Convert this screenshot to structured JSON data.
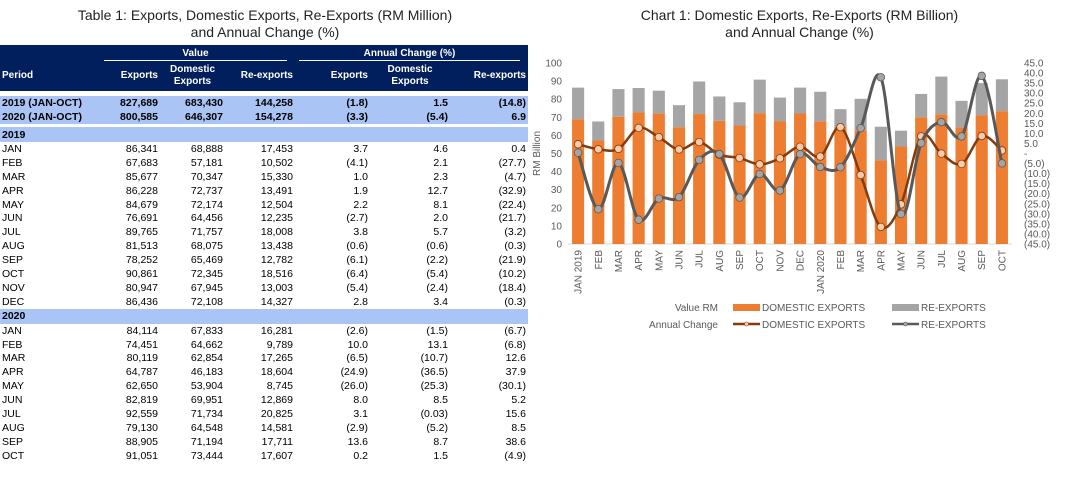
{
  "table": {
    "title_line1": "Table 1: Exports, Domestic Exports, Re-Exports (RM Million)",
    "title_line2": "and Annual Change (%)",
    "group_headers": {
      "value": "Value",
      "annual_change": "Annual Change (%)"
    },
    "columns": {
      "period": "Period",
      "exports": "Exports",
      "domestic_exports_1": "Domestic",
      "domestic_exports_2": "Exports",
      "re_exports": "Re-exports",
      "chg_exports": "Exports",
      "chg_domestic_1": "Domestic",
      "chg_domestic_2": "Exports",
      "chg_re_exports": "Re-exports"
    },
    "summary": [
      {
        "period": "2019 (JAN-OCT)",
        "exports": "827,689",
        "domestic": "683,430",
        "re": "144,258",
        "chg_exports": "(1.8)",
        "chg_domestic": "1.5",
        "chg_re": "(14.8)"
      },
      {
        "period": "2020 (JAN-OCT)",
        "exports": "800,585",
        "domestic": "646,307",
        "re": "154,278",
        "chg_exports": "(3.3)",
        "chg_domestic": "(5.4)",
        "chg_re": "6.9"
      }
    ],
    "years": [
      {
        "label": "2019",
        "rows": [
          {
            "period": "JAN",
            "exports": "86,341",
            "domestic": "68,888",
            "re": "17,453",
            "chg_exports": "3.7",
            "chg_domestic": "4.6",
            "chg_re": "0.4"
          },
          {
            "period": "FEB",
            "exports": "67,683",
            "domestic": "57,181",
            "re": "10,502",
            "chg_exports": "(4.1)",
            "chg_domestic": "2.1",
            "chg_re": "(27.7)"
          },
          {
            "period": "MAR",
            "exports": "85,677",
            "domestic": "70,347",
            "re": "15,330",
            "chg_exports": "1.0",
            "chg_domestic": "2.3",
            "chg_re": "(4.7)"
          },
          {
            "period": "APR",
            "exports": "86,228",
            "domestic": "72,737",
            "re": "13,491",
            "chg_exports": "1.9",
            "chg_domestic": "12.7",
            "chg_re": "(32.9)"
          },
          {
            "period": "MAY",
            "exports": "84,679",
            "domestic": "72,174",
            "re": "12,504",
            "chg_exports": "2.2",
            "chg_domestic": "8.1",
            "chg_re": "(22.4)"
          },
          {
            "period": "JUN",
            "exports": "76,691",
            "domestic": "64,456",
            "re": "12,235",
            "chg_exports": "(2.7)",
            "chg_domestic": "2.0",
            "chg_re": "(21.7)"
          },
          {
            "period": "JUL",
            "exports": "89,765",
            "domestic": "71,757",
            "re": "18,008",
            "chg_exports": "3.8",
            "chg_domestic": "5.7",
            "chg_re": "(3.2)"
          },
          {
            "period": "AUG",
            "exports": "81,513",
            "domestic": "68,075",
            "re": "13,438",
            "chg_exports": "(0.6)",
            "chg_domestic": "(0.6)",
            "chg_re": "(0.3)"
          },
          {
            "period": "SEP",
            "exports": "78,252",
            "domestic": "65,469",
            "re": "12,782",
            "chg_exports": "(6.1)",
            "chg_domestic": "(2.2)",
            "chg_re": "(21.9)"
          },
          {
            "period": "OCT",
            "exports": "90,861",
            "domestic": "72,345",
            "re": "18,516",
            "chg_exports": "(6.4)",
            "chg_domestic": "(5.4)",
            "chg_re": "(10.2)"
          },
          {
            "period": "NOV",
            "exports": "80,947",
            "domestic": "67,945",
            "re": "13,003",
            "chg_exports": "(5.4)",
            "chg_domestic": "(2.4)",
            "chg_re": "(18.4)"
          },
          {
            "period": "DEC",
            "exports": "86,436",
            "domestic": "72,108",
            "re": "14,327",
            "chg_exports": "2.8",
            "chg_domestic": "3.4",
            "chg_re": "(0.3)"
          }
        ]
      },
      {
        "label": "2020",
        "rows": [
          {
            "period": "JAN",
            "exports": "84,114",
            "domestic": "67,833",
            "re": "16,281",
            "chg_exports": "(2.6)",
            "chg_domestic": "(1.5)",
            "chg_re": "(6.7)"
          },
          {
            "period": "FEB",
            "exports": "74,451",
            "domestic": "64,662",
            "re": "9,789",
            "chg_exports": "10.0",
            "chg_domestic": "13.1",
            "chg_re": "(6.8)"
          },
          {
            "period": "MAR",
            "exports": "80,119",
            "domestic": "62,854",
            "re": "17,265",
            "chg_exports": "(6.5)",
            "chg_domestic": "(10.7)",
            "chg_re": "12.6"
          },
          {
            "period": "APR",
            "exports": "64,787",
            "domestic": "46,183",
            "re": "18,604",
            "chg_exports": "(24.9)",
            "chg_domestic": "(36.5)",
            "chg_re": "37.9"
          },
          {
            "period": "MAY",
            "exports": "62,650",
            "domestic": "53,904",
            "re": "8,745",
            "chg_exports": "(26.0)",
            "chg_domestic": "(25.3)",
            "chg_re": "(30.1)"
          },
          {
            "period": "JUN",
            "exports": "82,819",
            "domestic": "69,951",
            "re": "12,869",
            "chg_exports": "8.0",
            "chg_domestic": "8.5",
            "chg_re": "5.2"
          },
          {
            "period": "JUL",
            "exports": "92,559",
            "domestic": "71,734",
            "re": "20,825",
            "chg_exports": "3.1",
            "chg_domestic": "(0.03)",
            "chg_re": "15.6"
          },
          {
            "period": "AUG",
            "exports": "79,130",
            "domestic": "64,548",
            "re": "14,581",
            "chg_exports": "(2.9)",
            "chg_domestic": "(5.2)",
            "chg_re": "8.5"
          },
          {
            "period": "SEP",
            "exports": "88,905",
            "domestic": "71,194",
            "re": "17,711",
            "chg_exports": "13.6",
            "chg_domestic": "8.7",
            "chg_re": "38.6"
          },
          {
            "period": "OCT",
            "exports": "91,051",
            "domestic": "73,444",
            "re": "17,607",
            "chg_exports": "0.2",
            "chg_domestic": "1.5",
            "chg_re": "(4.9)"
          }
        ]
      }
    ],
    "colors": {
      "header_bg": "#001f5c",
      "band_bg": "#aac4f5"
    }
  },
  "chart_data": {
    "type": "bar",
    "title": "Chart 1: Domestic Exports, Re-Exports (RM Billion)",
    "subtitle": "and Annual Change (%)",
    "ylabel": "RM Billion",
    "ylim": [
      0,
      100
    ],
    "yticks": [
      0,
      10,
      20,
      30,
      40,
      50,
      60,
      70,
      80,
      90,
      100
    ],
    "y2lim": [
      -45,
      45
    ],
    "y2ticks": [
      "45.0",
      "40.0",
      "35.0",
      "30.0",
      "25.0",
      "20.0",
      "15.0",
      "10.0",
      "5.0",
      "-",
      "(5.0)",
      "(10.0)",
      "(15.0)",
      "(20.0)",
      "(25.0)",
      "(30.0)",
      "(35.0)",
      "(40.0)",
      "(45.0)"
    ],
    "categories": [
      "JAN 2019",
      "FEB",
      "MAR",
      "APR",
      "MAY",
      "JUN",
      "JUL",
      "AUG",
      "SEP",
      "OCT",
      "NOV",
      "DEC",
      "JAN 2020",
      "FEB",
      "MAR",
      "APR",
      "MAY",
      "JUN",
      "JUL",
      "AUG",
      "SEP",
      "OCT"
    ],
    "stacked_bars": [
      {
        "name": "DOMESTIC EXPORTS",
        "group": "Value RM",
        "color": "#ed7d31",
        "values": [
          68.9,
          57.2,
          70.3,
          72.7,
          72.2,
          64.5,
          71.8,
          68.1,
          65.5,
          72.3,
          67.9,
          72.1,
          67.8,
          64.7,
          62.9,
          46.2,
          53.9,
          70.0,
          71.7,
          64.5,
          71.2,
          73.4
        ]
      },
      {
        "name": "RE-EXPORTS",
        "group": "Value RM",
        "color": "#a5a5a5",
        "values": [
          17.5,
          10.5,
          15.3,
          13.5,
          12.5,
          12.2,
          18.0,
          13.4,
          12.8,
          18.5,
          13.0,
          14.3,
          16.3,
          9.8,
          17.3,
          18.6,
          8.7,
          12.9,
          20.8,
          14.6,
          17.7,
          17.6
        ]
      }
    ],
    "lines": [
      {
        "name": "DOMESTIC EXPORTS",
        "group": "Annual Change",
        "axis": "secondary",
        "color": "#843c0c",
        "marker": "#f8cbad",
        "values": [
          4.6,
          2.1,
          2.3,
          12.7,
          8.1,
          2.0,
          5.7,
          -0.6,
          -2.2,
          -5.4,
          -2.4,
          3.4,
          -1.5,
          13.1,
          -10.7,
          -36.5,
          -25.3,
          8.5,
          -0.03,
          -5.2,
          8.7,
          1.5
        ]
      },
      {
        "name": "RE-EXPORTS",
        "group": "Annual Change",
        "axis": "secondary",
        "color": "#595959",
        "marker": "#a5a5a5",
        "values": [
          0.4,
          -27.7,
          -4.7,
          -32.9,
          -22.4,
          -21.7,
          -3.2,
          -0.3,
          -21.9,
          -10.2,
          -18.4,
          -0.3,
          -6.7,
          -6.8,
          12.6,
          37.9,
          -30.1,
          5.2,
          15.6,
          8.5,
          38.6,
          -4.9
        ]
      }
    ],
    "legend": {
      "row1_label": "Value RM",
      "row2_label": "Annual Change",
      "bar_dom": "DOMESTIC EXPORTS",
      "bar_re": "RE-EXPORTS",
      "line_dom": "DOMESTIC EXPORTS",
      "line_re": "RE-EXPORTS",
      "placement": "bottom"
    }
  }
}
